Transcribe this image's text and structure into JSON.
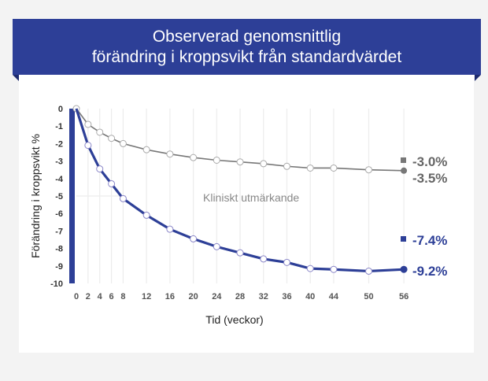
{
  "title": {
    "line1": "Observerad genomsnittlig",
    "line2": "förändring i kroppsvikt från standardvärdet"
  },
  "colors": {
    "banner": "#2d3f97",
    "blue_series": "#2d3f97",
    "gray_series": "#777777",
    "background": "#f3f3f3",
    "card": "#ffffff"
  },
  "chart_data": {
    "type": "line",
    "title": "Observerad genomsnittlig förändring i kroppsvikt från standardvärdet",
    "xlabel": "Tid (veckor)",
    "ylabel": "Förändring i kroppsvikt %",
    "x": [
      0,
      2,
      4,
      6,
      8,
      12,
      16,
      20,
      24,
      28,
      32,
      36,
      40,
      44,
      50,
      56
    ],
    "x_tick_labels": [
      "0",
      "2",
      "4",
      "6",
      "8",
      "12",
      "16",
      "20",
      "24",
      "28",
      "32",
      "36",
      "40",
      "44",
      "50",
      "56"
    ],
    "y_tick_labels": [
      "0",
      "-1",
      "-2",
      "-3",
      "-4",
      "-5",
      "-6",
      "-7",
      "-8",
      "-9",
      "-10"
    ],
    "ylim": [
      -10,
      0
    ],
    "grid": "vertical gridlines at x ticks",
    "annotation": "Kliniskt utmärkande",
    "series": [
      {
        "name": "gray",
        "color": "#777777",
        "values": [
          0,
          -0.9,
          -1.35,
          -1.7,
          -2.0,
          -2.35,
          -2.6,
          -2.8,
          -2.95,
          -3.05,
          -3.15,
          -3.3,
          -3.4,
          -3.4,
          -3.5,
          -3.55
        ],
        "end_labels": [
          {
            "marker": "square",
            "text": "-3.0%"
          },
          {
            "marker": "circle",
            "text": "-3.5%"
          }
        ]
      },
      {
        "name": "blue",
        "color": "#2d3f97",
        "values": [
          0,
          -2.1,
          -3.45,
          -4.3,
          -5.15,
          -6.1,
          -6.9,
          -7.45,
          -7.9,
          -8.25,
          -8.6,
          -8.8,
          -9.15,
          -9.2,
          -9.3,
          -9.2
        ],
        "end_labels": [
          {
            "marker": "square",
            "text": "-7.4%"
          },
          {
            "marker": "circle",
            "text": "-9.2%"
          }
        ]
      }
    ]
  }
}
